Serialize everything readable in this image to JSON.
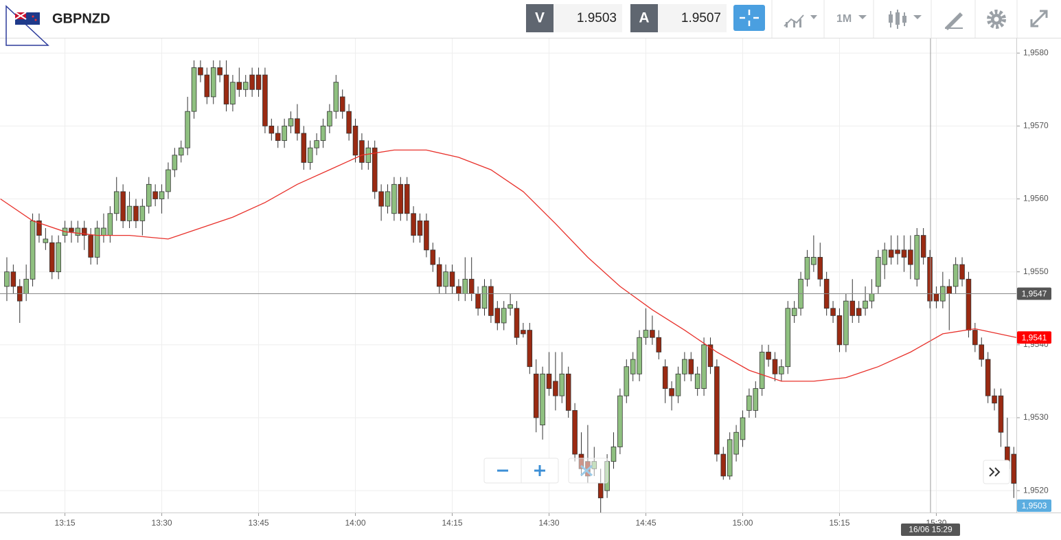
{
  "toolbar": {
    "symbol": "GBPNZD",
    "bid_letter": "V",
    "bid": "1.9503",
    "ask_letter": "A",
    "ask": "1.9507",
    "timeframe": "1M"
  },
  "chart_data": {
    "type": "candlestick",
    "up_color": "#8fc080",
    "down_color": "#9a2a12",
    "xlim": [
      -1.06,
      156.4
    ],
    "ylim": [
      1.9517,
      1.9582
    ],
    "grid": true,
    "xticks": [
      {
        "value": 9,
        "label": "13:15"
      },
      {
        "value": 24,
        "label": "13:30"
      },
      {
        "value": 39,
        "label": "13:45"
      },
      {
        "value": 54,
        "label": "14:00"
      },
      {
        "value": 69,
        "label": "14:15"
      },
      {
        "value": 84,
        "label": "14:30"
      },
      {
        "value": 99,
        "label": "14:45"
      },
      {
        "value": 114,
        "label": "15:00"
      },
      {
        "value": 129,
        "label": "15:15"
      },
      {
        "value": 144,
        "label": "15:30"
      }
    ],
    "yticks": [
      {
        "value": 1.952,
        "label": "1,9520"
      },
      {
        "value": 1.953,
        "label": "1,9530"
      },
      {
        "value": 1.954,
        "label": "1,9540"
      },
      {
        "value": 1.955,
        "label": "1,9550"
      },
      {
        "value": 1.956,
        "label": "1,9560"
      },
      {
        "value": 1.957,
        "label": "1,9570"
      },
      {
        "value": 1.958,
        "label": "1,9580"
      }
    ],
    "candles": [
      [
        1.9548,
        1.9552,
        1.9546,
        1.955
      ],
      [
        1.955,
        1.9551,
        1.9547,
        1.9548
      ],
      [
        1.9548,
        1.9549,
        1.9543,
        1.9546
      ],
      [
        1.9547,
        1.9551,
        1.9546,
        1.9549
      ],
      [
        1.9549,
        1.9558,
        1.9548,
        1.9557
      ],
      [
        1.9557,
        1.9558,
        1.9554,
        1.9555
      ],
      [
        1.9554,
        1.9556,
        1.9553,
        1.95545
      ],
      [
        1.9554,
        1.9555,
        1.9549,
        1.955
      ],
      [
        1.955,
        1.9555,
        1.9549,
        1.9554
      ],
      [
        1.9555,
        1.9557,
        1.9554,
        1.9556
      ],
      [
        1.9556,
        1.9557,
        1.9554,
        1.95555
      ],
      [
        1.9555,
        1.9557,
        1.9554,
        1.9556
      ],
      [
        1.9556,
        1.9557,
        1.9553,
        1.9555
      ],
      [
        1.9555,
        1.9556,
        1.9551,
        1.9552
      ],
      [
        1.9552,
        1.9557,
        1.9551,
        1.9556
      ],
      [
        1.9555,
        1.9558,
        1.9554,
        1.9556
      ],
      [
        1.9555,
        1.9559,
        1.9554,
        1.9558
      ],
      [
        1.9558,
        1.9563,
        1.9557,
        1.9561
      ],
      [
        1.9561,
        1.9562,
        1.9556,
        1.9557
      ],
      [
        1.9557,
        1.9561,
        1.9556,
        1.9559
      ],
      [
        1.9559,
        1.956,
        1.9556,
        1.9557
      ],
      [
        1.9557,
        1.956,
        1.9555,
        1.9559
      ],
      [
        1.9559,
        1.9563,
        1.9558,
        1.9562
      ],
      [
        1.9561,
        1.9562,
        1.9559,
        1.956
      ],
      [
        1.956,
        1.9562,
        1.9558,
        1.9561
      ],
      [
        1.9561,
        1.9565,
        1.956,
        1.9564
      ],
      [
        1.9564,
        1.9567,
        1.9563,
        1.9566
      ],
      [
        1.9566,
        1.9568,
        1.9565,
        1.9567
      ],
      [
        1.9567,
        1.9574,
        1.9566,
        1.9572
      ],
      [
        1.9572,
        1.9579,
        1.9571,
        1.9578
      ],
      [
        1.9578,
        1.9579,
        1.9576,
        1.9577
      ],
      [
        1.9577,
        1.9578,
        1.9573,
        1.9574
      ],
      [
        1.9574,
        1.9579,
        1.9573,
        1.9578
      ],
      [
        1.9578,
        1.9579,
        1.9576,
        1.9577
      ],
      [
        1.9577,
        1.9579,
        1.9572,
        1.9573
      ],
      [
        1.9573,
        1.9577,
        1.9572,
        1.9576
      ],
      [
        1.9576,
        1.9578,
        1.9574,
        1.9575
      ],
      [
        1.9575,
        1.9577,
        1.9574,
        1.9576
      ],
      [
        1.9577,
        1.9578,
        1.9574,
        1.9575
      ],
      [
        1.9577,
        1.9578,
        1.9574,
        1.9575
      ],
      [
        1.9577,
        1.9578,
        1.9569,
        1.957
      ],
      [
        1.957,
        1.9571,
        1.9568,
        1.9569
      ],
      [
        1.9569,
        1.957,
        1.9567,
        1.9568
      ],
      [
        1.9568,
        1.9571,
        1.9567,
        1.957
      ],
      [
        1.957,
        1.9572,
        1.9569,
        1.9571
      ],
      [
        1.9571,
        1.9573,
        1.9568,
        1.9569
      ],
      [
        1.9569,
        1.957,
        1.9564,
        1.9565
      ],
      [
        1.9565,
        1.9568,
        1.9564,
        1.9567
      ],
      [
        1.9567,
        1.9569,
        1.9566,
        1.9568
      ],
      [
        1.9568,
        1.9571,
        1.9567,
        1.957
      ],
      [
        1.957,
        1.9573,
        1.9569,
        1.9572
      ],
      [
        1.9572,
        1.9577,
        1.9571,
        1.9576
      ],
      [
        1.9574,
        1.9575,
        1.9571,
        1.9572
      ],
      [
        1.9572,
        1.9573,
        1.9568,
        1.9569
      ],
      [
        1.957,
        1.9571,
        1.9565,
        1.9566
      ],
      [
        1.9568,
        1.9569,
        1.9564,
        1.9565
      ],
      [
        1.9565,
        1.9568,
        1.9564,
        1.9567
      ],
      [
        1.9567,
        1.9568,
        1.956,
        1.9561
      ],
      [
        1.9561,
        1.9562,
        1.9557,
        1.9559
      ],
      [
        1.9559,
        1.9562,
        1.9558,
        1.9561
      ],
      [
        1.9558,
        1.9563,
        1.9557,
        1.9562
      ],
      [
        1.9562,
        1.9563,
        1.9557,
        1.9558
      ],
      [
        1.9562,
        1.9563,
        1.9557,
        1.9558
      ],
      [
        1.9558,
        1.9559,
        1.9554,
        1.9555
      ],
      [
        1.9557,
        1.9558,
        1.9554,
        1.9555
      ],
      [
        1.9557,
        1.9558,
        1.9552,
        1.9553
      ],
      [
        1.9553,
        1.9554,
        1.955,
        1.9551
      ],
      [
        1.9551,
        1.9552,
        1.9547,
        1.9548
      ],
      [
        1.9548,
        1.9551,
        1.9547,
        1.955
      ],
      [
        1.955,
        1.9551,
        1.9547,
        1.9548
      ],
      [
        1.9548,
        1.9549,
        1.9546,
        1.9547
      ],
      [
        1.9547,
        1.9552,
        1.9546,
        1.9549
      ],
      [
        1.9549,
        1.9552,
        1.9546,
        1.9547
      ],
      [
        1.9547,
        1.9548,
        1.9544,
        1.9545
      ],
      [
        1.9545,
        1.9549,
        1.9544,
        1.9548
      ],
      [
        1.9548,
        1.9549,
        1.9543,
        1.9544
      ],
      [
        1.9545,
        1.9546,
        1.9542,
        1.9543
      ],
      [
        1.9543,
        1.9546,
        1.9542,
        1.9545
      ],
      [
        1.9545,
        1.9547,
        1.9544,
        1.95455
      ],
      [
        1.9545,
        1.9546,
        1.954,
        1.9541
      ],
      [
        1.9542,
        1.9543,
        1.9541,
        1.95415
      ],
      [
        1.9542,
        1.9543,
        1.9536,
        1.9537
      ],
      [
        1.9536,
        1.9538,
        1.9528,
        1.953
      ],
      [
        1.9529,
        1.9537,
        1.9527,
        1.9536
      ],
      [
        1.9536,
        1.9539,
        1.9533,
        1.9534
      ],
      [
        1.9535,
        1.9539,
        1.9531,
        1.9533
      ],
      [
        1.9533,
        1.9539,
        1.9532,
        1.9536
      ],
      [
        1.9536,
        1.9537,
        1.953,
        1.9531
      ],
      [
        1.9531,
        1.9532,
        1.9524,
        1.9525
      ],
      [
        1.9525,
        1.9528,
        1.9522,
        1.9523
      ],
      [
        1.9524,
        1.9529,
        1.9521,
        1.9522
      ],
      [
        1.9523,
        1.9526,
        1.9522,
        1.9524
      ],
      [
        1.9521,
        1.9523,
        1.9517,
        1.9519
      ],
      [
        1.952,
        1.9525,
        1.9519,
        1.9524
      ],
      [
        1.9524,
        1.9528,
        1.9523,
        1.9526
      ],
      [
        1.9526,
        1.9534,
        1.9525,
        1.9533
      ],
      [
        1.9533,
        1.9538,
        1.9532,
        1.9537
      ],
      [
        1.9536,
        1.9539,
        1.9535,
        1.9538
      ],
      [
        1.9536,
        1.9542,
        1.9535,
        1.9541
      ],
      [
        1.9541,
        1.9545,
        1.954,
        1.9542
      ],
      [
        1.9542,
        1.9544,
        1.954,
        1.9541
      ],
      [
        1.9541,
        1.9542,
        1.9538,
        1.9539
      ],
      [
        1.9537,
        1.9538,
        1.9532,
        1.9534
      ],
      [
        1.9534,
        1.9535,
        1.9531,
        1.9533
      ],
      [
        1.9533,
        1.9537,
        1.9532,
        1.9536
      ],
      [
        1.9536,
        1.9539,
        1.9535,
        1.9538
      ],
      [
        1.9538,
        1.9539,
        1.9535,
        1.9536
      ],
      [
        1.9534,
        1.9537,
        1.9533,
        1.9536
      ],
      [
        1.9534,
        1.9541,
        1.9533,
        1.954
      ],
      [
        1.954,
        1.9541,
        1.9536,
        1.9537
      ],
      [
        1.9537,
        1.9538,
        1.9524,
        1.9525
      ],
      [
        1.9525,
        1.9526,
        1.95215,
        1.9522
      ],
      [
        1.9522,
        1.9528,
        1.95215,
        1.9527
      ],
      [
        1.9525,
        1.9529,
        1.9524,
        1.9528
      ],
      [
        1.9527,
        1.9531,
        1.9526,
        1.953
      ],
      [
        1.9531,
        1.9534,
        1.953,
        1.9533
      ],
      [
        1.9531,
        1.9535,
        1.953,
        1.9534
      ],
      [
        1.9534,
        1.954,
        1.9533,
        1.9539
      ],
      [
        1.9539,
        1.954,
        1.9537,
        1.9538
      ],
      [
        1.9538,
        1.9539,
        1.9535,
        1.9536
      ],
      [
        1.9536,
        1.9538,
        1.9535,
        1.9537
      ],
      [
        1.9537,
        1.9546,
        1.9536,
        1.9545
      ],
      [
        1.9544,
        1.9546,
        1.9543,
        1.9545
      ],
      [
        1.9545,
        1.955,
        1.9544,
        1.9549
      ],
      [
        1.9549,
        1.9553,
        1.9548,
        1.9552
      ],
      [
        1.9551,
        1.9555,
        1.955,
        1.9552
      ],
      [
        1.9552,
        1.9554,
        1.9548,
        1.9549
      ],
      [
        1.9549,
        1.955,
        1.9544,
        1.9545
      ],
      [
        1.9545,
        1.9546,
        1.9543,
        1.9544
      ],
      [
        1.9544,
        1.9545,
        1.9539,
        1.954
      ],
      [
        1.954,
        1.9547,
        1.9539,
        1.9546
      ],
      [
        1.9546,
        1.9549,
        1.9543,
        1.9544
      ],
      [
        1.9545,
        1.9546,
        1.9543,
        1.9544
      ],
      [
        1.9545,
        1.9548,
        1.9544,
        1.9546
      ],
      [
        1.9546,
        1.9549,
        1.9545,
        1.9547
      ],
      [
        1.9548,
        1.9553,
        1.9547,
        1.9552
      ],
      [
        1.9551,
        1.9554,
        1.9549,
        1.9553
      ],
      [
        1.9553,
        1.9555,
        1.9551,
        1.9552
      ],
      [
        1.9553,
        1.9555,
        1.9551,
        1.95525
      ],
      [
        1.9553,
        1.9555,
        1.955,
        1.9552
      ],
      [
        1.9553,
        1.9555,
        1.9549,
        1.9551
      ],
      [
        1.9549,
        1.9556,
        1.9548,
        1.9555
      ],
      [
        1.9555,
        1.9556,
        1.9551,
        1.9552
      ],
      [
        1.9552,
        1.9553,
        1.9545,
        1.9546
      ],
      [
        1.9547,
        1.9548,
        1.9545,
        1.9546
      ],
      [
        1.9546,
        1.955,
        1.9545,
        1.9548
      ],
      [
        1.9548,
        1.9549,
        1.9542,
        1.9547
      ],
      [
        1.9548,
        1.9552,
        1.9547,
        1.9551
      ],
      [
        1.9551,
        1.9552,
        1.9548,
        1.9549
      ],
      [
        1.9549,
        1.955,
        1.9541,
        1.9542
      ],
      [
        1.9542,
        1.9543,
        1.9539,
        1.954
      ],
      [
        1.954,
        1.9541,
        1.9537,
        1.9538
      ],
      [
        1.9538,
        1.9539,
        1.9532,
        1.9533
      ],
      [
        1.9533,
        1.9534,
        1.9531,
        1.9532
      ],
      [
        1.9533,
        1.9534,
        1.9526,
        1.9528
      ],
      [
        1.9526,
        1.953,
        1.9522,
        1.9523
      ],
      [
        1.9525,
        1.9526,
        1.9519,
        1.9521
      ]
    ],
    "ma": {
      "color": "#e8302a",
      "last_label": "1,9541",
      "x": [
        -1,
        4,
        9,
        14,
        19,
        25,
        30,
        35,
        40,
        45,
        50,
        55,
        60,
        65,
        70,
        75,
        80,
        85,
        90,
        95,
        100,
        105,
        110,
        115,
        120,
        125,
        130,
        135,
        140,
        145,
        150,
        156.4
      ],
      "values": [
        1.956,
        1.9557,
        1.95555,
        1.9555,
        1.9555,
        1.95545,
        1.9556,
        1.95575,
        1.95595,
        1.9562,
        1.9564,
        1.9566,
        1.95667,
        1.95667,
        1.95657,
        1.9564,
        1.9561,
        1.95566,
        1.9552,
        1.9548,
        1.95448,
        1.9542,
        1.9539,
        1.95365,
        1.9535,
        1.9535,
        1.95355,
        1.9537,
        1.9539,
        1.95415,
        1.95422,
        1.9541
      ]
    },
    "crosshair": {
      "x": 143.1,
      "y": 1.9547,
      "x_label": "16/06 15:29",
      "y_label": "1,9547"
    },
    "bid_tag": "1,9503"
  }
}
